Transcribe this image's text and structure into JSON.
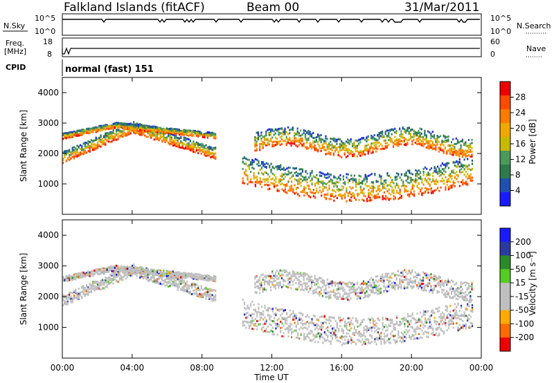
{
  "header": {
    "station": "Falkland Islands (fitACF)",
    "beam": "Beam 00",
    "date": "31/Mar/2011"
  },
  "strips": {
    "nsky": {
      "left_label": "N.Sky",
      "top_tick": "10^5",
      "bottom_tick": "10^0",
      "right_label": "N.Search",
      "right_top_tick": "10^5",
      "right_bottom_tick": "10^0"
    },
    "freq": {
      "left_label_1": "Freq.",
      "left_label_2": "[MHz]",
      "top_tick": "18",
      "bottom_tick": "8",
      "right_label": "Nave",
      "right_top_tick": "60",
      "right_bottom_tick": "0"
    },
    "cpid": {
      "left_label": "CPID",
      "mode": "normal (fast) 151"
    }
  },
  "colors": {
    "power_scale": [
      "#1a1aff",
      "#1f4fb0",
      "#2d7b4b",
      "#4a9a5a",
      "#c9b800",
      "#f0a800",
      "#ff7a00",
      "#ff4a00",
      "#ee0000"
    ],
    "velocity_scale": [
      "#ee0000",
      "#ff6a00",
      "#ffaa00",
      "#bfbfbf",
      "#bfbfbf",
      "#55cc22",
      "#2a8a2a",
      "#2a3aa0",
      "#1a1aff"
    ]
  },
  "chart_data": [
    {
      "type": "heatmap",
      "title": "",
      "ylabel": "Slant Range [km]",
      "ylim": [
        0,
        4500
      ],
      "yticks": [
        "1000",
        "2000",
        "3000",
        "4000"
      ],
      "colorbar": {
        "label": "Power [dB]",
        "ticks": [
          "4",
          "8",
          "12",
          "16",
          "20",
          "24",
          "28"
        ]
      }
    },
    {
      "type": "heatmap",
      "title": "",
      "ylabel": "Slant Range [km]",
      "xlabel": "Time UT",
      "ylim": [
        0,
        4500
      ],
      "yticks": [
        "1000",
        "2000",
        "3000",
        "4000"
      ],
      "xticks": [
        "00:00",
        "04:00",
        "08:00",
        "12:00",
        "16:00",
        "20:00",
        "00:00"
      ],
      "colorbar": {
        "label": "Velocity [m s⁻¹]",
        "ticks": [
          "200",
          "100",
          "50",
          "15",
          "-15",
          "-50",
          "-100",
          "-200"
        ]
      }
    }
  ]
}
